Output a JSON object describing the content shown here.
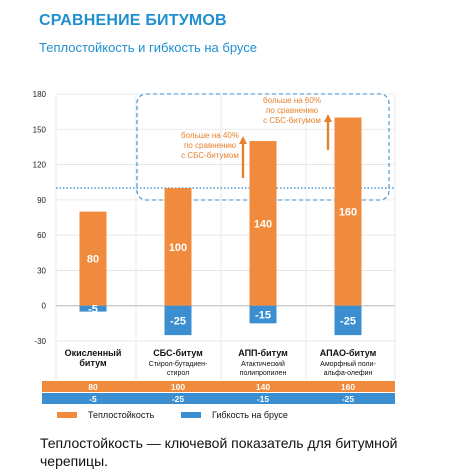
{
  "header": {
    "title": "СРАВНЕНИЕ БИТУМОВ",
    "subtitle": "Теплостойкость и гибкость на брусе"
  },
  "caption": "Теплостойкость — ключевой показатель для битумной черепицы.",
  "colors": {
    "heat": "#f08a3c",
    "flex": "#3b8fd0",
    "title": "#1f8fd0",
    "annotation": "#e6822d"
  },
  "chart_data": {
    "type": "bar",
    "title": "Теплостойкость и гибкость на брусе",
    "ylim": [
      -30,
      180
    ],
    "yticks": [
      -30,
      0,
      30,
      60,
      90,
      120,
      150,
      180
    ],
    "grid": true,
    "legend_position": "bottom",
    "categories": [
      {
        "name": "Окисленный битум",
        "name_lines": [
          "Окисленный",
          "битум"
        ],
        "desc_lines": []
      },
      {
        "name": "СБС-битум",
        "name_lines": [
          "СБС-битум"
        ],
        "desc_lines": [
          "Стирол-бутадиен-",
          "стирол"
        ]
      },
      {
        "name": "АПП-битум",
        "name_lines": [
          "АПП-битум"
        ],
        "desc_lines": [
          "Атактический",
          "полипропилен"
        ]
      },
      {
        "name": "АПАО-битум",
        "name_lines": [
          "АПАО-битум"
        ],
        "desc_lines": [
          "Аморфный поли-",
          "альфа-олефин"
        ]
      }
    ],
    "series": [
      {
        "name": "Теплостойкость",
        "values": [
          80,
          100,
          140,
          160
        ]
      },
      {
        "name": "Гибкость на брусе",
        "values": [
          -5,
          -25,
          -15,
          -25
        ]
      }
    ],
    "reference_line": 100,
    "annotations": [
      {
        "category_index": 2,
        "lines": [
          "больше на 40%",
          "по сравнению",
          "с СБС-битумом"
        ]
      },
      {
        "category_index": 3,
        "lines": [
          "больше на 60%",
          "по сравнению",
          "с СБС-битумом"
        ]
      }
    ]
  }
}
